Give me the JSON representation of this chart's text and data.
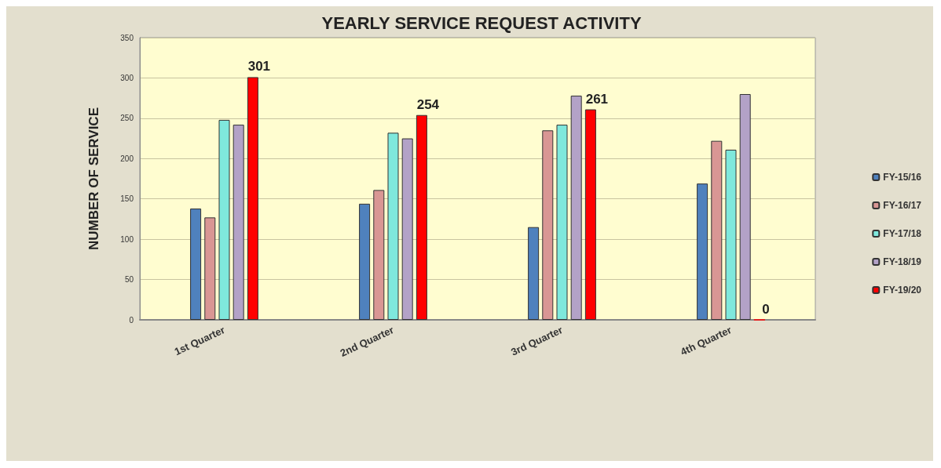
{
  "chart_data": {
    "type": "bar",
    "title": "YEARLY SERVICE REQUEST ACTIVITY",
    "ylabel": "NUMBER OF SERVICE",
    "categories": [
      "1st Quarter",
      "2nd Quarter",
      "3rd Quarter",
      "4th Quarter"
    ],
    "series": [
      {
        "name": "FY-15/16",
        "color": "#4f81bd",
        "values": [
          138,
          144,
          115,
          169
        ]
      },
      {
        "name": "FY-16/17",
        "color": "#d99694",
        "values": [
          127,
          161,
          235,
          222
        ]
      },
      {
        "name": "FY-17/18",
        "color": "#7fe8dc",
        "values": [
          248,
          232,
          242,
          211
        ]
      },
      {
        "name": "FY-18/19",
        "color": "#b3a2c7",
        "values": [
          242,
          225,
          278,
          280
        ]
      },
      {
        "name": "FY-19/20",
        "color": "#ff0000",
        "values": [
          301,
          254,
          261,
          0
        ],
        "value_labels": [
          "301",
          "254",
          "261",
          "0"
        ]
      }
    ],
    "ylim": [
      0,
      350
    ],
    "yticks": [
      0,
      50,
      100,
      150,
      200,
      250,
      300,
      350
    ],
    "grid": "y",
    "legend": "right"
  }
}
